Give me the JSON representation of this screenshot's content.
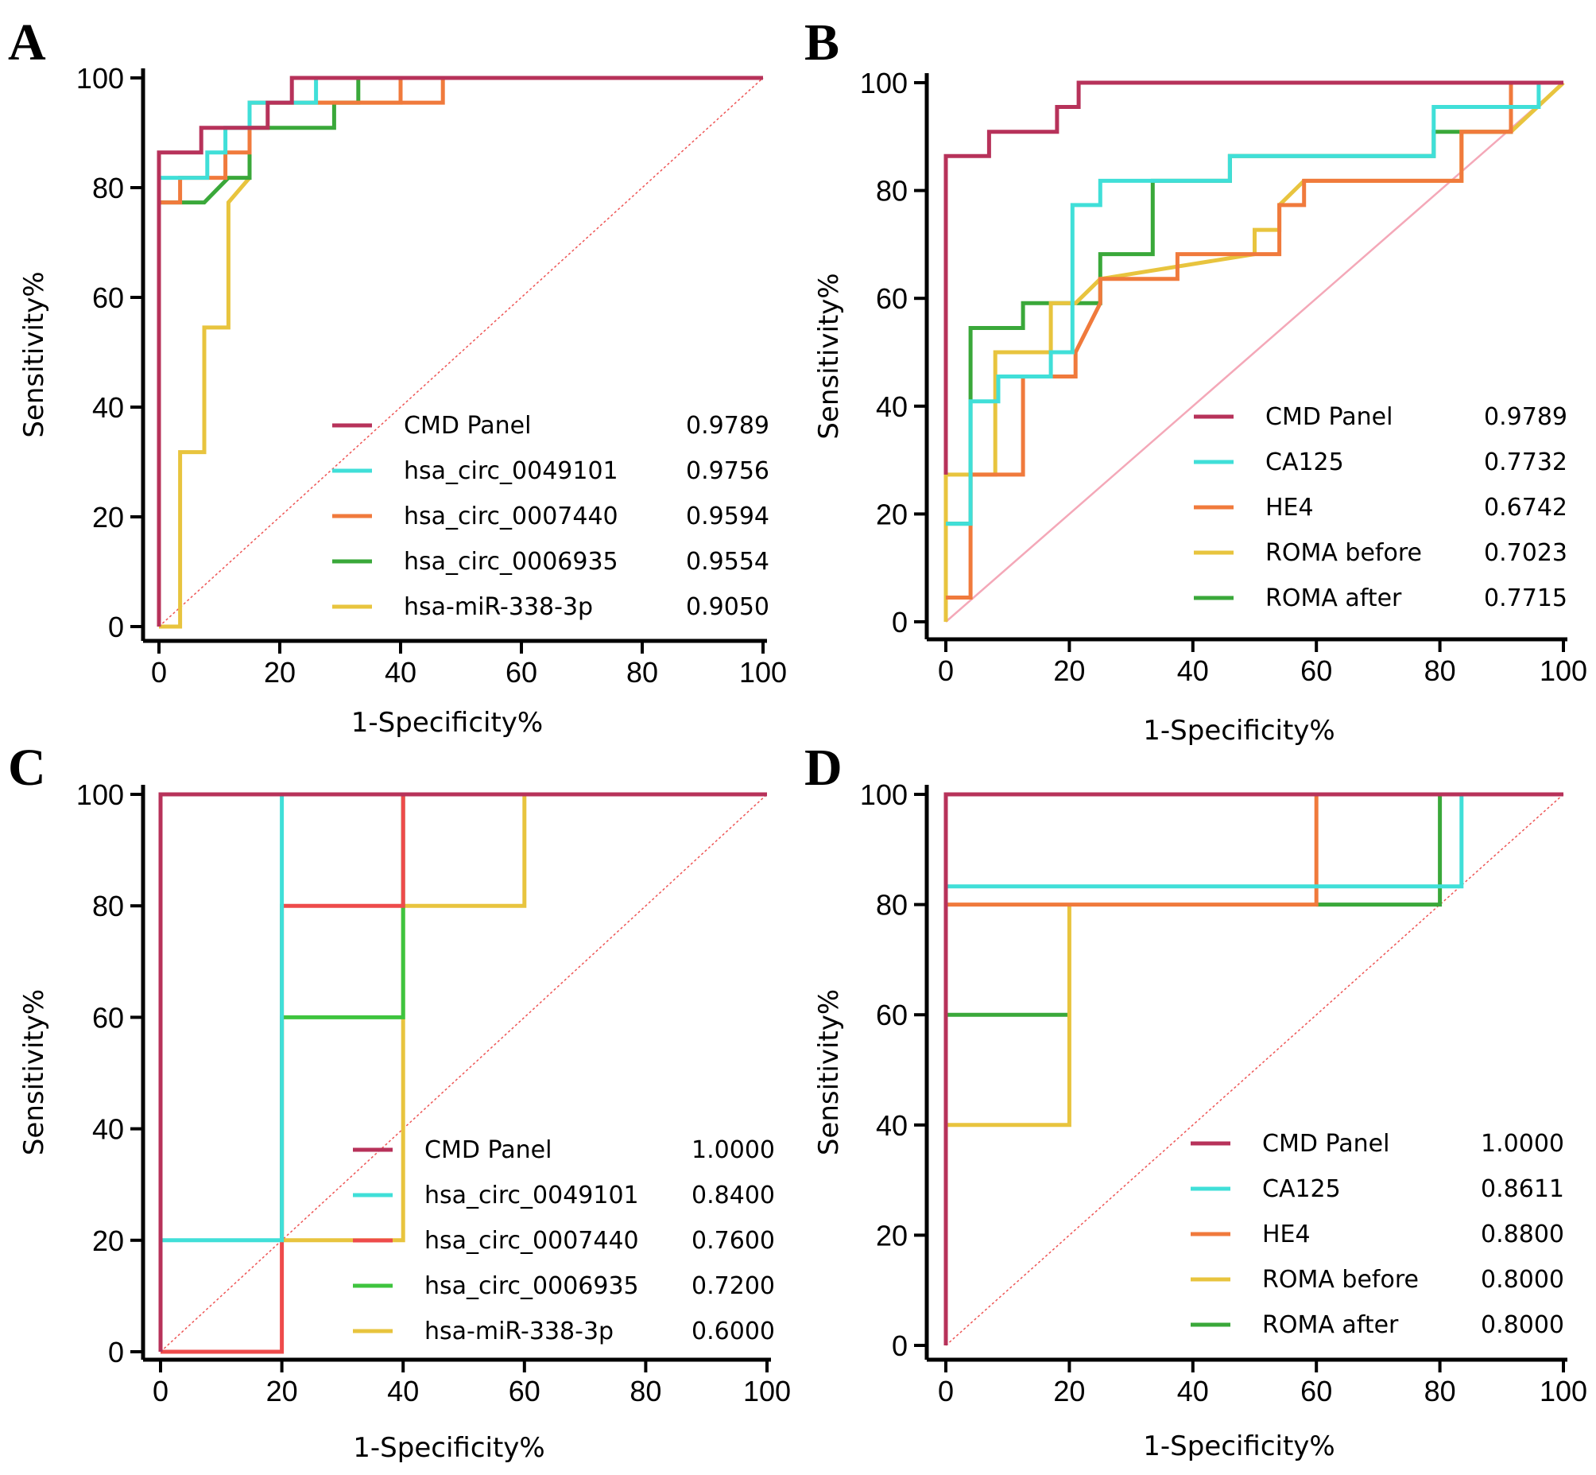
{
  "chart_data": [
    {
      "panel": "A",
      "type": "line",
      "subtype": "roc",
      "xlabel": "1-Specificity%",
      "ylabel": "Sensitivity%",
      "xlim": [
        0,
        100
      ],
      "ylim": [
        0,
        100
      ],
      "xticks": [
        0,
        20,
        40,
        60,
        80,
        100
      ],
      "yticks": [
        0,
        20,
        40,
        60,
        80,
        100
      ],
      "reference_line": "diagonal",
      "series": [
        {
          "name": "CMD Panel",
          "auc": "0.9789",
          "color": "#b7325a",
          "points": [
            [
              0,
              0
            ],
            [
              0,
              86.4
            ],
            [
              7,
              86.4
            ],
            [
              7,
              90.9
            ],
            [
              18,
              90.9
            ],
            [
              18,
              95.5
            ],
            [
              22,
              95.5
            ],
            [
              22,
              100
            ],
            [
              100,
              100
            ]
          ]
        },
        {
          "name": "hsa_circ_0049101",
          "auc": "0.9756",
          "color": "#40dfd8",
          "points": [
            [
              0,
              77.3
            ],
            [
              0,
              81.8
            ],
            [
              4,
              81.8
            ],
            [
              8,
              81.8
            ],
            [
              8,
              86.4
            ],
            [
              11,
              86.4
            ],
            [
              11,
              90.9
            ],
            [
              15,
              90.9
            ],
            [
              15,
              95.5
            ],
            [
              26,
              95.5
            ],
            [
              26,
              100
            ],
            [
              100,
              100
            ]
          ]
        },
        {
          "name": "hsa_circ_0007440",
          "auc": "0.9594",
          "color": "#f07a3c",
          "points": [
            [
              0,
              77.3
            ],
            [
              3.5,
              77.3
            ],
            [
              3.5,
              81.8
            ],
            [
              11,
              81.8
            ],
            [
              11,
              86.4
            ],
            [
              15,
              86.4
            ],
            [
              15,
              95.5
            ],
            [
              40,
              95.5
            ],
            [
              40,
              100
            ],
            [
              47,
              100
            ],
            [
              47,
              95.5
            ],
            [
              40,
              95.5
            ]
          ]
        },
        {
          "name": "hsa_circ_0006935",
          "auc": "0.9554",
          "color": "#3aa83a",
          "points": [
            [
              0,
              77.3
            ],
            [
              7.5,
              77.3
            ],
            [
              11.5,
              81.8
            ],
            [
              15,
              81.8
            ],
            [
              15,
              90.9
            ],
            [
              29,
              90.9
            ],
            [
              29,
              95.5
            ],
            [
              33,
              95.5
            ],
            [
              33,
              100
            ]
          ]
        },
        {
          "name": "hsa-miR-338-3p",
          "auc": "0.9050",
          "color": "#e8c43e",
          "points": [
            [
              0,
              0
            ],
            [
              3.5,
              0
            ],
            [
              3.5,
              31.8
            ],
            [
              7.5,
              31.8
            ],
            [
              7.5,
              54.5
            ],
            [
              11.5,
              54.5
            ],
            [
              11.5,
              77.3
            ],
            [
              15,
              81.8
            ],
            [
              15,
              95.5
            ],
            [
              40,
              95.5
            ],
            [
              40,
              100
            ],
            [
              100,
              100
            ]
          ]
        }
      ]
    },
    {
      "panel": "B",
      "type": "line",
      "subtype": "roc",
      "xlabel": "1-Specificity%",
      "ylabel": "Sensitivity%",
      "xlim": [
        0,
        100
      ],
      "ylim": [
        0,
        100
      ],
      "xticks": [
        0,
        20,
        40,
        60,
        80,
        100
      ],
      "yticks": [
        0,
        20,
        40,
        60,
        80,
        100
      ],
      "reference_line": "diagonal",
      "series": [
        {
          "name": "CMD Panel",
          "auc": "0.9789",
          "color": "#b7325a",
          "points": [
            [
              0,
              27.3
            ],
            [
              0,
              86.4
            ],
            [
              7,
              86.4
            ],
            [
              7,
              90.9
            ],
            [
              18,
              90.9
            ],
            [
              18,
              95.5
            ],
            [
              21.5,
              95.5
            ],
            [
              21.5,
              100
            ],
            [
              91.5,
              100
            ],
            [
              100,
              100
            ]
          ]
        },
        {
          "name": "CA125",
          "auc": "0.7732",
          "color": "#40dfd8",
          "points": [
            [
              0,
              18.2
            ],
            [
              4,
              18.2
            ],
            [
              4,
              40.9
            ],
            [
              8.5,
              40.9
            ],
            [
              8.5,
              45.5
            ],
            [
              17,
              45.5
            ],
            [
              17,
              50
            ],
            [
              20.5,
              50
            ],
            [
              20.5,
              77.3
            ],
            [
              25,
              77.3
            ],
            [
              25,
              81.8
            ],
            [
              46,
              81.8
            ],
            [
              46,
              86.4
            ],
            [
              79,
              86.4
            ],
            [
              79,
              95.5
            ],
            [
              96,
              95.5
            ],
            [
              96,
              100
            ],
            [
              100,
              100
            ]
          ]
        },
        {
          "name": "HE4",
          "auc": "0.6742",
          "color": "#f07a3c",
          "points": [
            [
              0,
              4.5
            ],
            [
              4,
              4.5
            ],
            [
              4,
              27.3
            ],
            [
              12.5,
              27.3
            ],
            [
              12.5,
              45.5
            ],
            [
              21,
              45.5
            ],
            [
              21,
              50
            ],
            [
              25,
              59.1
            ],
            [
              25,
              63.6
            ],
            [
              37.5,
              63.6
            ],
            [
              37.5,
              68.2
            ],
            [
              54,
              68.2
            ],
            [
              54,
              77.3
            ],
            [
              58,
              77.3
            ],
            [
              58,
              81.8
            ],
            [
              83.5,
              81.8
            ],
            [
              83.5,
              90.9
            ],
            [
              91.5,
              90.9
            ],
            [
              91.5,
              100
            ]
          ]
        },
        {
          "name": "ROMA before",
          "auc": "0.7023",
          "color": "#e8c43e",
          "points": [
            [
              0,
              0
            ],
            [
              0,
              27.3
            ],
            [
              8,
              27.3
            ],
            [
              8,
              50
            ],
            [
              17,
              50
            ],
            [
              17,
              59.1
            ],
            [
              21,
              59.1
            ],
            [
              25,
              63.6
            ],
            [
              50,
              68.2
            ],
            [
              50,
              72.7
            ],
            [
              54,
              72.7
            ],
            [
              54,
              77.3
            ],
            [
              58,
              81.8
            ],
            [
              83.5,
              81.8
            ],
            [
              83.5,
              90.9
            ],
            [
              91.5,
              90.9
            ],
            [
              100,
              100
            ]
          ]
        },
        {
          "name": "ROMA after",
          "auc": "0.7715",
          "color": "#3aa83a",
          "points": [
            [
              0,
              0
            ],
            [
              0,
              18.2
            ],
            [
              4,
              18.2
            ],
            [
              4,
              54.5
            ],
            [
              12.5,
              54.5
            ],
            [
              12.5,
              59.1
            ],
            [
              25,
              59.1
            ],
            [
              25,
              68.2
            ],
            [
              33.5,
              68.2
            ],
            [
              33.5,
              81.8
            ],
            [
              46,
              81.8
            ],
            [
              46,
              86.4
            ],
            [
              79,
              86.4
            ],
            [
              79,
              90.9
            ],
            [
              91.5,
              90.9
            ],
            [
              91.5,
              100
            ],
            [
              100,
              100
            ]
          ]
        }
      ]
    },
    {
      "panel": "C",
      "type": "line",
      "subtype": "roc",
      "xlabel": "1-Specificity%",
      "ylabel": "Sensitivity%",
      "xlim": [
        0,
        100
      ],
      "ylim": [
        0,
        100
      ],
      "xticks": [
        0,
        20,
        40,
        60,
        80,
        100
      ],
      "yticks": [
        0,
        20,
        40,
        60,
        80,
        100
      ],
      "reference_line": "diagonal",
      "series": [
        {
          "name": "CMD Panel",
          "auc": "1.0000",
          "color": "#b7325a",
          "points": [
            [
              0,
              0
            ],
            [
              0,
              100
            ],
            [
              100,
              100
            ]
          ]
        },
        {
          "name": "hsa_circ_0049101",
          "auc": "0.8400",
          "color": "#40dfd8",
          "points": [
            [
              0,
              20
            ],
            [
              20,
              20
            ],
            [
              20,
              100
            ],
            [
              40,
              100
            ]
          ]
        },
        {
          "name": "hsa_circ_0007440",
          "auc": "0.7600",
          "color": "#ee4b4b",
          "points": [
            [
              0,
              0
            ],
            [
              20,
              0
            ],
            [
              20,
              80
            ],
            [
              40,
              80
            ],
            [
              40,
              100
            ],
            [
              60,
              100
            ]
          ]
        },
        {
          "name": "hsa_circ_0006935",
          "auc": "0.7200",
          "color": "#3ec43e",
          "points": [
            [
              20,
              20
            ],
            [
              20,
              60
            ],
            [
              40,
              60
            ],
            [
              40,
              100
            ]
          ]
        },
        {
          "name": "hsa-miR-338-3p",
          "auc": "0.6000",
          "color": "#e8c43e",
          "points": [
            [
              20,
              20
            ],
            [
              40,
              20
            ],
            [
              40,
              80
            ],
            [
              60,
              80
            ],
            [
              60,
              100
            ],
            [
              100,
              100
            ]
          ]
        }
      ]
    },
    {
      "panel": "D",
      "type": "line",
      "subtype": "roc",
      "xlabel": "1-Specificity%",
      "ylabel": "Sensitivity%",
      "xlim": [
        0,
        100
      ],
      "ylim": [
        0,
        100
      ],
      "xticks": [
        0,
        20,
        40,
        60,
        80,
        100
      ],
      "yticks": [
        0,
        20,
        40,
        60,
        80,
        100
      ],
      "reference_line": "diagonal",
      "series": [
        {
          "name": "CMD Panel",
          "auc": "1.0000",
          "color": "#b7325a",
          "points": [
            [
              0,
              0
            ],
            [
              0,
              100
            ],
            [
              100,
              100
            ]
          ]
        },
        {
          "name": "CA125",
          "auc": "0.8611",
          "color": "#40dfd8",
          "points": [
            [
              0,
              83.3
            ],
            [
              83.5,
              83.3
            ],
            [
              83.5,
              100
            ]
          ]
        },
        {
          "name": "HE4",
          "auc": "0.8800",
          "color": "#f07a3c",
          "points": [
            [
              0,
              80
            ],
            [
              60,
              80
            ],
            [
              60,
              100
            ]
          ]
        },
        {
          "name": "ROMA before",
          "auc": "0.8000",
          "color": "#e8c43e",
          "points": [
            [
              0,
              40
            ],
            [
              20,
              40
            ],
            [
              20,
              80
            ]
          ]
        },
        {
          "name": "ROMA after",
          "auc": "0.8000",
          "color": "#3aa83a",
          "points": [
            [
              0,
              60
            ],
            [
              20,
              60
            ]
          ],
          "extra_points": [
            [
              60,
              80
            ],
            [
              80,
              80
            ],
            [
              80,
              100
            ]
          ]
        }
      ]
    }
  ]
}
